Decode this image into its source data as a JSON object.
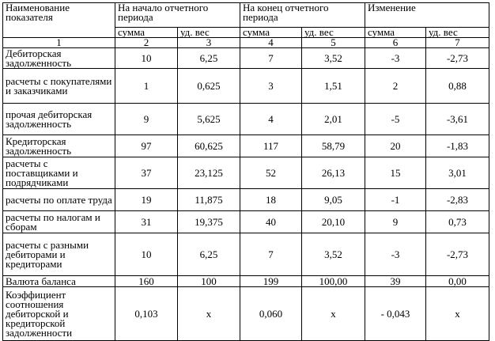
{
  "table": {
    "header": {
      "indicator": "Наименование показателя",
      "groups": [
        "На начало отчетного периода",
        "На конец отчетного периода",
        "Изменение"
      ],
      "subcolumns": [
        "сумма",
        "уд. вес",
        "сумма",
        "уд. вес",
        "сумма",
        "уд. вес"
      ],
      "column_numbers": [
        "1",
        "2",
        "3",
        "4",
        "5",
        "6",
        "7"
      ]
    },
    "rows": [
      [
        "Дебиторская задолженность",
        "10",
        "6,25",
        "7",
        "3,52",
        "-3",
        "-2,73"
      ],
      [
        "расчеты с покупателями и заказчиками",
        "1",
        "0,625",
        "3",
        "1,51",
        "2",
        "0,88"
      ],
      [
        "прочая дебиторская задолженность",
        "9",
        "5,625",
        "4",
        "2,01",
        "-5",
        "-3,61"
      ],
      [
        "Кредиторская задолженность",
        "97",
        "60,625",
        "117",
        "58,79",
        "20",
        "-1,83"
      ],
      [
        "расчеты с поставщиками и подрядчиками",
        "37",
        "23,125",
        "52",
        "26,13",
        "15",
        "3,01"
      ],
      [
        "расчеты по оплате труда",
        "19",
        "11,875",
        "18",
        "9,05",
        "-1",
        "-2,83"
      ],
      [
        "расчеты по налогам и сборам",
        "31",
        "19,375",
        "40",
        "20,10",
        "9",
        "0,73"
      ],
      [
        "расчеты с разными дебиторами и кредиторами",
        "10",
        "6,25",
        "7",
        "3,52",
        "-3",
        "-2,73"
      ],
      [
        "Валюта баланса",
        "160",
        "100",
        "199",
        "100,00",
        "39",
        "0,00"
      ],
      [
        "Коэффициент соотношения дебиторской и кредиторской задолженности",
        "0,103",
        "x",
        "0,060",
        "x",
        "- 0,043",
        "x"
      ]
    ]
  }
}
